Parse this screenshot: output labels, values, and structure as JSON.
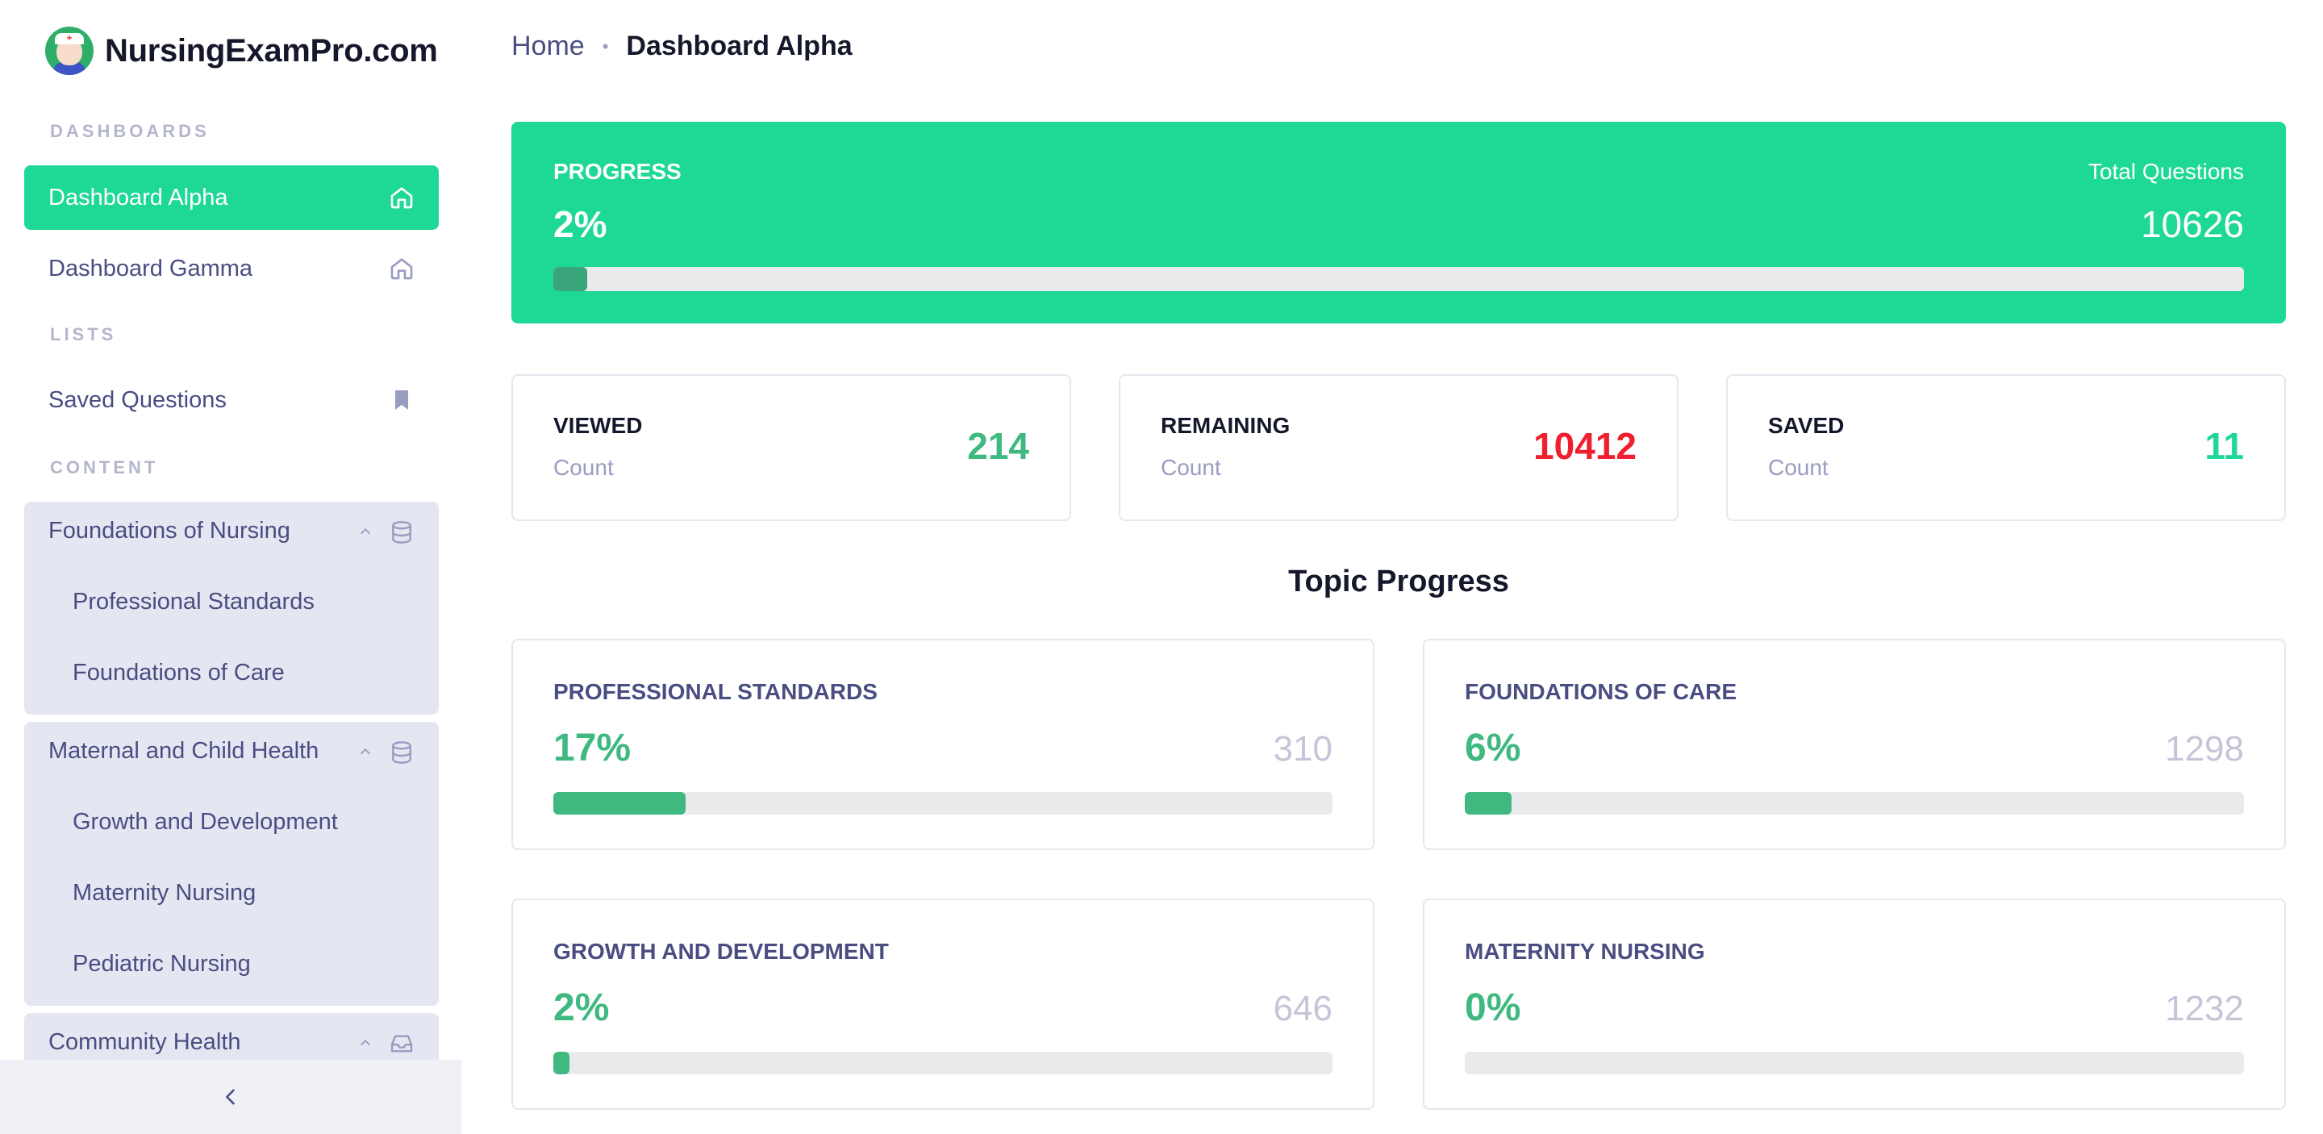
{
  "app": {
    "name": "NursingExamPro.com"
  },
  "sidebar": {
    "sections": {
      "dashboards": "DASHBOARDS",
      "lists": "LISTS",
      "content": "CONTENT"
    },
    "items": {
      "dashboard_alpha": {
        "label": "Dashboard Alpha",
        "icon": "home-icon",
        "active": true
      },
      "dashboard_gamma": {
        "label": "Dashboard Gamma",
        "icon": "home-icon",
        "active": false
      },
      "saved_questions": {
        "label": "Saved Questions",
        "icon": "bookmark-icon"
      }
    },
    "groups": [
      {
        "title": "Foundations of Nursing",
        "icon": "database-icon",
        "expanded": true,
        "children": [
          "Professional Standards",
          "Foundations of Care"
        ]
      },
      {
        "title": "Maternal and Child Health",
        "icon": "database-icon",
        "expanded": true,
        "children": [
          "Growth and Development",
          "Maternity Nursing",
          "Pediatric Nursing"
        ]
      },
      {
        "title": "Community Health",
        "icon": "inbox-icon",
        "expanded": true,
        "children": []
      }
    ],
    "collapse_icon": "chevron-left-icon"
  },
  "breadcrumb": {
    "home": "Home",
    "current": "Dashboard Alpha"
  },
  "progress": {
    "label": "PROGRESS",
    "value": "2%",
    "fraction": 0.02,
    "total_label": "Total Questions",
    "total": "10626"
  },
  "stats": [
    {
      "label": "VIEWED",
      "sub": "Count",
      "value": "214",
      "color": "#3fb97f"
    },
    {
      "label": "REMAINING",
      "sub": "Count",
      "value": "10412",
      "color": "#ef1f2f"
    },
    {
      "label": "SAVED",
      "sub": "Count",
      "value": "11",
      "color": "#1ed896"
    }
  ],
  "topic_heading": "Topic Progress",
  "topics": [
    {
      "label": "PROFESSIONAL STANDARDS",
      "pct": "17%",
      "fraction": 0.17,
      "total": "310"
    },
    {
      "label": "FOUNDATIONS OF CARE",
      "pct": "6%",
      "fraction": 0.06,
      "total": "1298"
    },
    {
      "label": "GROWTH AND DEVELOPMENT",
      "pct": "2%",
      "fraction": 0.02,
      "total": "646"
    },
    {
      "label": "MATERNITY NURSING",
      "pct": "0%",
      "fraction": 0.0,
      "total": "1232"
    }
  ],
  "colors": {
    "accent": "#1ed896",
    "topic_fill": "#3fb97f",
    "progress_fill": "#3aa57a",
    "track": "#e9eaec"
  }
}
